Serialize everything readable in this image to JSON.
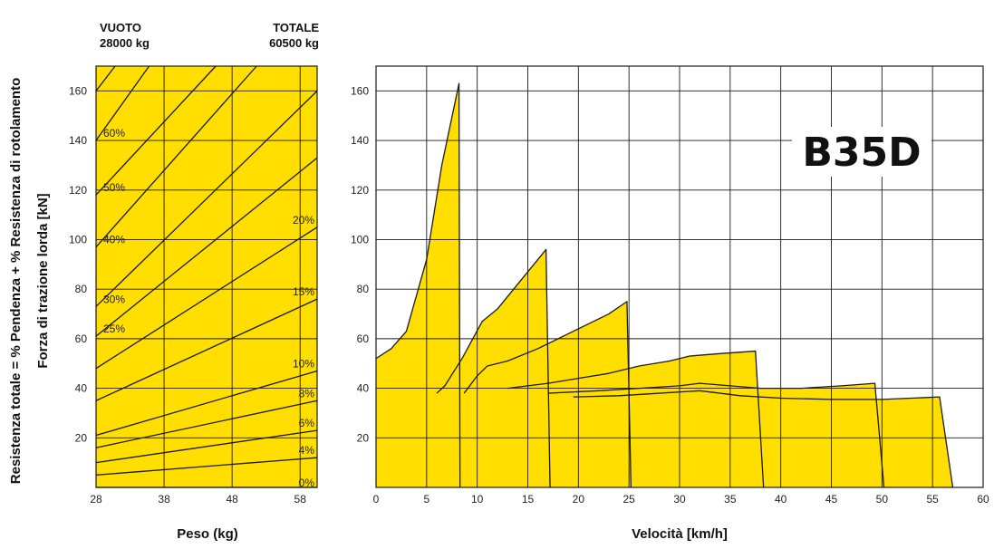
{
  "colors": {
    "fill": "#ffde00",
    "line": "#1a1a1a",
    "background": "#ffffff"
  },
  "y_axis_label_1": "Resistenza totale = % Pendenza + % Resistenza di rotolamento",
  "y_axis_label_2": "Forza di trazione lorda [kN]",
  "chart_data": [
    {
      "type": "line",
      "xlabel": "Peso (kg)",
      "header_left": {
        "line1": "VUOTO",
        "line2": "28000 kg"
      },
      "header_right": {
        "line1": "TOTALE",
        "line2": "60500 kg"
      },
      "xlim": [
        28,
        60.5
      ],
      "ylim": [
        0,
        170
      ],
      "x_ticks": [
        28,
        38,
        48,
        58
      ],
      "y_ticks": [
        20,
        40,
        60,
        80,
        100,
        120,
        140,
        160
      ],
      "grid": true,
      "series": [
        {
          "name": "0%",
          "x": [
            28,
            60.5
          ],
          "y": [
            0,
            0
          ]
        },
        {
          "name": "4%",
          "x": [
            28,
            60.5
          ],
          "y": [
            5,
            12
          ]
        },
        {
          "name": "6%",
          "x": [
            28,
            60.5
          ],
          "y": [
            10,
            23
          ]
        },
        {
          "name": "8%",
          "x": [
            28,
            60.5
          ],
          "y": [
            16,
            35
          ]
        },
        {
          "name": "10%",
          "x": [
            28,
            60.5
          ],
          "y": [
            21,
            47
          ]
        },
        {
          "name": "15%",
          "x": [
            28,
            60.5
          ],
          "y": [
            35,
            76
          ]
        },
        {
          "name": "20%",
          "x": [
            28,
            60.5
          ],
          "y": [
            48,
            105
          ]
        },
        {
          "name": "25%",
          "x": [
            28,
            60.5
          ],
          "y": [
            61,
            133
          ]
        },
        {
          "name": "30%",
          "x": [
            28,
            60.5
          ],
          "y": [
            73,
            160
          ]
        },
        {
          "name": "40%",
          "x": [
            28,
            51.6
          ],
          "y": [
            97,
            170
          ]
        },
        {
          "name": "50%",
          "x": [
            28,
            45.6
          ],
          "y": [
            118,
            170
          ]
        },
        {
          "name": "60%",
          "x": [
            28,
            35.8
          ],
          "y": [
            140,
            170
          ]
        },
        {
          "name": "",
          "x": [
            28,
            30.8
          ],
          "y": [
            160,
            170
          ]
        }
      ]
    },
    {
      "type": "area",
      "title": "B35D",
      "xlabel": "Velocità [km/h]",
      "xlim": [
        0,
        60
      ],
      "ylim": [
        0,
        170
      ],
      "x_ticks": [
        0,
        5,
        10,
        15,
        20,
        25,
        30,
        35,
        40,
        45,
        50,
        55,
        60
      ],
      "y_ticks": [
        20,
        40,
        60,
        80,
        100,
        120,
        140,
        160
      ],
      "grid": true,
      "series": [
        {
          "name": "",
          "x": [
            0,
            1.5,
            3,
            5,
            6.5,
            8.2,
            8.3
          ],
          "y": [
            52,
            56,
            63,
            92,
            130,
            163,
            0
          ]
        },
        {
          "name": "",
          "x": [
            6,
            6.8,
            8.5,
            10.5,
            12,
            14,
            16.8,
            17.2
          ],
          "y": [
            38,
            41,
            52,
            67,
            72,
            82,
            96,
            0
          ]
        },
        {
          "name": "",
          "x": [
            8.7,
            10,
            11,
            13,
            16,
            20,
            23,
            24.8,
            25.2
          ],
          "y": [
            38,
            45,
            49,
            51,
            56,
            64,
            70,
            75,
            0
          ]
        },
        {
          "name": "",
          "x": [
            13,
            17,
            20,
            23,
            26,
            29,
            31,
            34,
            37.5,
            38.3
          ],
          "y": [
            40,
            42,
            44,
            46,
            49,
            51,
            53,
            54,
            55,
            0
          ]
        },
        {
          "name": "",
          "x": [
            17,
            22,
            26,
            30,
            32,
            35,
            38,
            42,
            46,
            49.3,
            50.2
          ],
          "y": [
            38,
            39,
            40,
            41,
            42,
            41,
            40,
            40,
            41,
            42,
            0
          ]
        },
        {
          "name": "",
          "x": [
            19.5,
            24,
            28,
            32,
            36,
            40,
            45,
            50,
            55.7,
            57
          ],
          "y": [
            36.5,
            37,
            38,
            39,
            37,
            36,
            35.5,
            35.5,
            36.5,
            0
          ]
        }
      ]
    }
  ]
}
